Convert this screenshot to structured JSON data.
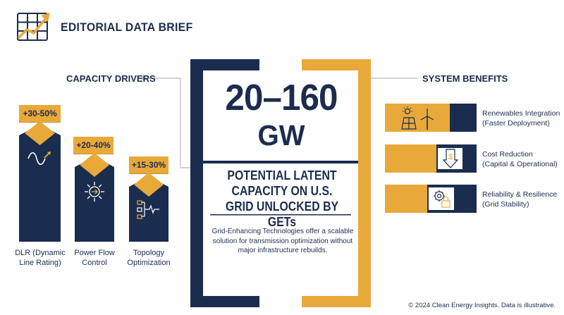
{
  "header": {
    "brand": "EDITORIAL DATA BRIEF",
    "logo_icon": "trend-up-grid-icon"
  },
  "drivers": {
    "title": "CAPACITY DRIVERS",
    "items": [
      {
        "badge": "+30-50%",
        "label": "DLR (Dynamic Line Rating)",
        "icon": "sine-wave-icon"
      },
      {
        "badge": "+20-40%",
        "label": "Power Flow Control",
        "icon": "flow-arrows-icon"
      },
      {
        "badge": "+15-30%",
        "label": "Topology Optimization",
        "icon": "network-switch-icon"
      }
    ]
  },
  "center": {
    "number": "20–160",
    "unit": "GW",
    "headline": "POTENTIAL LATENT CAPACITY ON U.S. GRID UNLOCKED BY GETs",
    "description": "Grid-Enhancing Technologies offer a scalable solution for transmission optimization without major infrastructure rebuilds."
  },
  "benefits": {
    "title": "SYSTEM BENEFITS",
    "items": [
      {
        "line1": "Renewables Integration",
        "line2": "(Faster Deployment)",
        "icon": "solar-wind-icon"
      },
      {
        "line1": "Cost Reduction",
        "line2": "(Capital & Operational)",
        "icon": "dollar-down-icon"
      },
      {
        "line1": "Reliability & Resilience",
        "line2": "(Grid Stability)",
        "icon": "gear-lock-icon"
      }
    ]
  },
  "footer": "© 2024 Clean Energy Insights. Data is illustrative.",
  "colors": {
    "navy": "#1b2d4f",
    "gold": "#e8a93a"
  }
}
